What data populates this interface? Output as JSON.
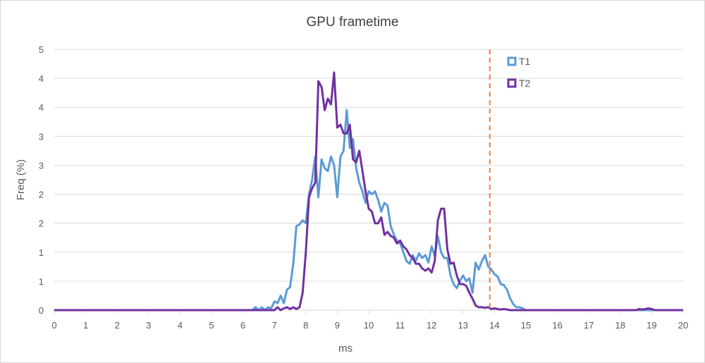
{
  "chart_data": {
    "type": "line",
    "title": "GPU frametime",
    "xlabel": "ms",
    "ylabel": "Freq (%)",
    "xlim": [
      0,
      20
    ],
    "ylim": [
      0,
      4.5
    ],
    "grid": "horizontal",
    "legend_position": "top-right",
    "x_tick_labels": [
      "0",
      "1",
      "2",
      "3",
      "4",
      "5",
      "6",
      "7",
      "8",
      "9",
      "10",
      "11",
      "12",
      "13",
      "14",
      "15",
      "16",
      "17",
      "18",
      "19",
      "20"
    ],
    "y_tick_values": [
      0,
      0.5,
      1,
      1.5,
      2,
      2.5,
      3,
      3.5,
      4,
      4.5
    ],
    "y_tick_labels": [
      "0",
      "1",
      "1",
      "2",
      "2",
      "3",
      "3",
      "4",
      "4",
      "5"
    ],
    "reference_line": {
      "x": 13.85,
      "color": "#ed7d31"
    },
    "series": [
      {
        "name": "T1",
        "color": "#5b9bd5",
        "x": [
          0,
          6,
          6.3,
          6.4,
          6.5,
          6.6,
          6.7,
          6.8,
          6.9,
          7.0,
          7.1,
          7.2,
          7.3,
          7.4,
          7.5,
          7.6,
          7.7,
          7.8,
          7.9,
          8.0,
          8.1,
          8.2,
          8.3,
          8.4,
          8.5,
          8.6,
          8.7,
          8.8,
          8.9,
          9.0,
          9.1,
          9.2,
          9.3,
          9.4,
          9.5,
          9.6,
          9.7,
          9.8,
          9.9,
          10.0,
          10.1,
          10.2,
          10.3,
          10.4,
          10.5,
          10.6,
          10.7,
          10.8,
          10.9,
          11.0,
          11.1,
          11.2,
          11.3,
          11.4,
          11.5,
          11.6,
          11.7,
          11.8,
          11.9,
          12.0,
          12.1,
          12.2,
          12.3,
          12.4,
          12.5,
          12.6,
          12.7,
          12.8,
          12.9,
          13.0,
          13.1,
          13.2,
          13.3,
          13.4,
          13.5,
          13.6,
          13.7,
          13.8,
          13.9,
          14.0,
          14.1,
          14.2,
          14.3,
          14.4,
          14.5,
          14.6,
          14.7,
          14.8,
          14.9,
          15.0,
          15.1,
          16.0,
          20
        ],
        "y": [
          0,
          0,
          0,
          0.05,
          0,
          0.05,
          0,
          0.05,
          0.03,
          0.15,
          0.12,
          0.25,
          0.12,
          0.35,
          0.4,
          0.8,
          1.45,
          1.48,
          1.55,
          1.5,
          2.0,
          2.25,
          2.65,
          1.95,
          2.6,
          2.45,
          2.4,
          2.65,
          2.5,
          1.95,
          2.65,
          2.75,
          3.45,
          2.8,
          2.95,
          2.45,
          2.2,
          2.05,
          1.85,
          2.05,
          2.0,
          2.05,
          1.9,
          1.7,
          1.85,
          1.8,
          1.45,
          1.3,
          1.2,
          1.15,
          1.0,
          0.85,
          0.8,
          0.95,
          0.85,
          0.98,
          0.9,
          0.95,
          0.82,
          1.1,
          0.93,
          1.28,
          1.0,
          0.9,
          0.9,
          0.6,
          0.45,
          0.38,
          0.5,
          0.6,
          0.5,
          0.55,
          0.3,
          0.82,
          0.7,
          0.85,
          0.95,
          0.75,
          0.7,
          0.62,
          0.58,
          0.45,
          0.43,
          0.35,
          0.2,
          0.1,
          0.05,
          0.05,
          0.03,
          0,
          0,
          0,
          0
        ]
      },
      {
        "name": "T2",
        "color": "#7030a0",
        "x": [
          0,
          7.0,
          7.1,
          7.2,
          7.3,
          7.4,
          7.5,
          7.6,
          7.7,
          7.8,
          7.9,
          8.0,
          8.1,
          8.2,
          8.3,
          8.4,
          8.5,
          8.6,
          8.7,
          8.8,
          8.9,
          9.0,
          9.1,
          9.2,
          9.3,
          9.4,
          9.5,
          9.6,
          9.7,
          9.8,
          9.9,
          10.0,
          10.1,
          10.2,
          10.3,
          10.4,
          10.5,
          10.6,
          10.7,
          10.8,
          10.9,
          11.0,
          11.1,
          11.2,
          11.3,
          11.4,
          11.5,
          11.6,
          11.7,
          11.8,
          11.9,
          12.0,
          12.1,
          12.2,
          12.3,
          12.4,
          12.5,
          12.6,
          12.7,
          12.8,
          12.9,
          13.0,
          13.1,
          13.2,
          13.3,
          13.4,
          13.5,
          13.6,
          13.7,
          13.8,
          13.9,
          14.0,
          14.1,
          14.2,
          14.3,
          14.4,
          14.5,
          14.6,
          18.5,
          18.6,
          18.7,
          18.8,
          18.9,
          19.0,
          19.1,
          20
        ],
        "y": [
          0,
          0,
          0.05,
          0,
          0.03,
          0.05,
          0.02,
          0.05,
          0.02,
          0.05,
          0.3,
          1.0,
          1.95,
          2.1,
          2.2,
          3.95,
          3.85,
          3.45,
          3.65,
          3.55,
          4.1,
          3.15,
          3.2,
          3.05,
          3.05,
          3.2,
          2.6,
          2.55,
          2.75,
          2.4,
          2.05,
          1.75,
          1.7,
          1.5,
          1.5,
          1.6,
          1.3,
          1.35,
          1.28,
          1.25,
          1.15,
          1.2,
          1.1,
          1.05,
          0.95,
          0.9,
          0.8,
          0.8,
          0.72,
          0.68,
          0.72,
          0.65,
          0.85,
          1.55,
          1.75,
          1.75,
          1.05,
          0.8,
          0.82,
          0.6,
          0.45,
          0.45,
          0.42,
          0.3,
          0.2,
          0.08,
          0.05,
          0.05,
          0.04,
          0.05,
          0.02,
          0.03,
          0.02,
          0.01,
          0.02,
          0.01,
          0,
          0,
          0,
          0.02,
          0.01,
          0.02,
          0.03,
          0.02,
          0,
          0
        ]
      }
    ]
  }
}
